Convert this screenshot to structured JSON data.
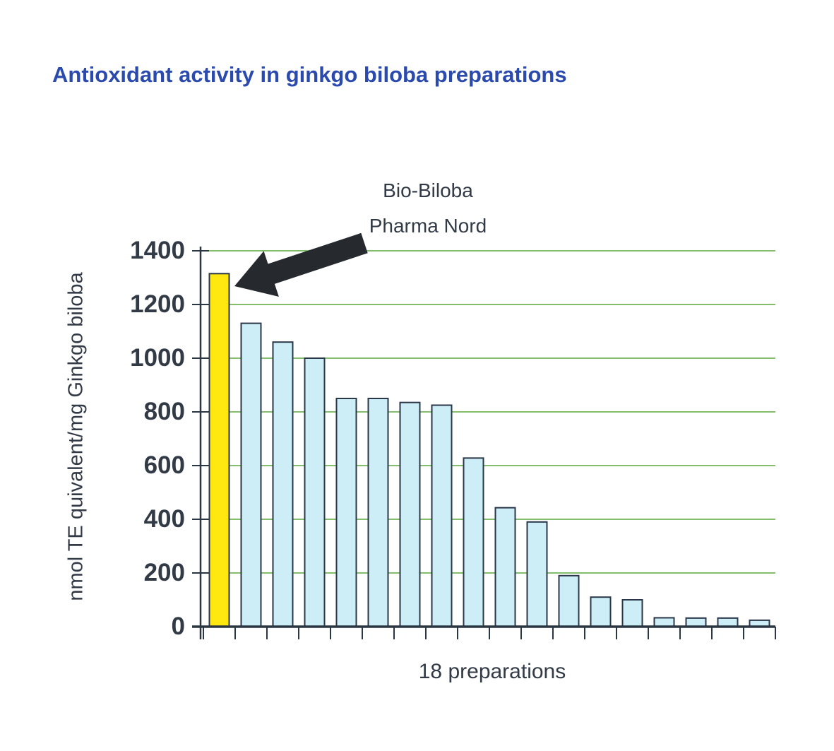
{
  "title": "Antioxidant activity in ginkgo biloba preparations",
  "annotation": {
    "line1": "Bio-Biloba",
    "line2": "Pharma Nord"
  },
  "chart_data": {
    "type": "bar",
    "title": "Antioxidant activity in ginkgo biloba preparations",
    "xlabel": "18 preparations",
    "ylabel": "nmol TE quivalent/mg Ginkgo biloba",
    "n_bars": 18,
    "values": [
      1315,
      1130,
      1060,
      1000,
      850,
      850,
      835,
      825,
      628,
      443,
      390,
      190,
      110,
      100,
      33,
      32,
      32,
      24
    ],
    "highlight_index": 0,
    "highlight_label": "Bio-Biloba Pharma Nord",
    "ylim": [
      0,
      1400
    ],
    "y_ticks": [
      0,
      200,
      400,
      600,
      800,
      1000,
      1200,
      1400
    ],
    "x_tick_labels": [],
    "grid": "horizontal",
    "legend": "none",
    "colors": {
      "highlight_bar": "#ffe70f",
      "bar_fill": "#cdeef6",
      "bar_border": "#2a3748",
      "gridline": "#58a93a",
      "axis": "#2a3642",
      "title_text": "#2b4aad",
      "text": "#323a46",
      "arrow": "#26292e",
      "background": "#ffffff"
    }
  }
}
